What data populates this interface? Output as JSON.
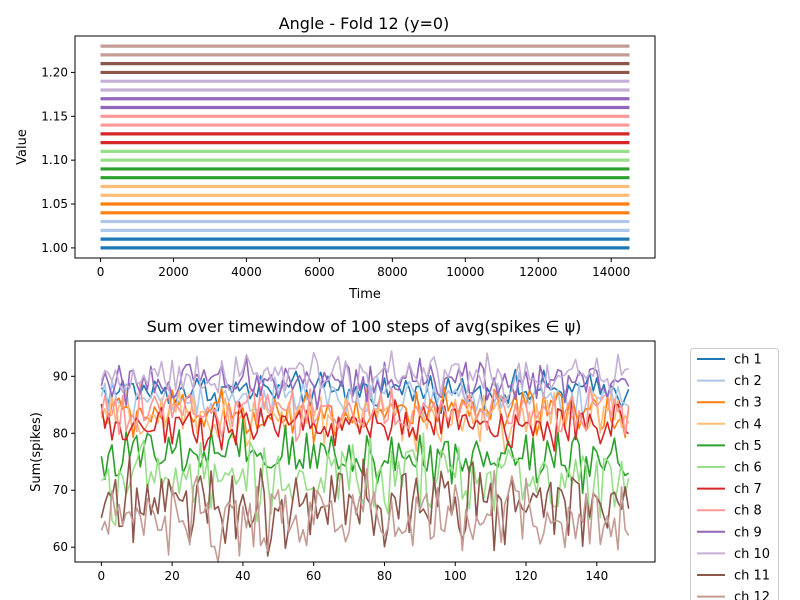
{
  "chart_data": [
    {
      "type": "line",
      "title": "Angle - Fold 12 (y=0)",
      "xlabel": "Time",
      "ylabel": "Value",
      "xlim": [
        -700,
        15200
      ],
      "ylim": [
        0.9885,
        1.2415
      ],
      "xticks": [
        0,
        2000,
        4000,
        6000,
        8000,
        10000,
        12000,
        14000
      ],
      "yticks": [
        1.0,
        1.05,
        1.1,
        1.15,
        1.2
      ],
      "ytick_labels": [
        "1.00",
        "1.05",
        "1.10",
        "1.15",
        "1.20"
      ],
      "x_range": [
        0,
        14500
      ],
      "grid": false,
      "series": [
        {
          "values": [
            1.0
          ],
          "color": "#1f77b4"
        },
        {
          "values": [
            1.01
          ],
          "color": "#1f77b4"
        },
        {
          "values": [
            1.02
          ],
          "color": "#aec7e8"
        },
        {
          "values": [
            1.03
          ],
          "color": "#aec7e8"
        },
        {
          "values": [
            1.04
          ],
          "color": "#ff7f0e"
        },
        {
          "values": [
            1.05
          ],
          "color": "#ff7f0e"
        },
        {
          "values": [
            1.06
          ],
          "color": "#ffbb78"
        },
        {
          "values": [
            1.07
          ],
          "color": "#ffbb78"
        },
        {
          "values": [
            1.08
          ],
          "color": "#2ca02c"
        },
        {
          "values": [
            1.09
          ],
          "color": "#2ca02c"
        },
        {
          "values": [
            1.1
          ],
          "color": "#98df8a"
        },
        {
          "values": [
            1.11
          ],
          "color": "#98df8a"
        },
        {
          "values": [
            1.12
          ],
          "color": "#d62728"
        },
        {
          "values": [
            1.13
          ],
          "color": "#d62728"
        },
        {
          "values": [
            1.14
          ],
          "color": "#ff9896"
        },
        {
          "values": [
            1.15
          ],
          "color": "#ff9896"
        },
        {
          "values": [
            1.16
          ],
          "color": "#9467bd"
        },
        {
          "values": [
            1.17
          ],
          "color": "#9467bd"
        },
        {
          "values": [
            1.18
          ],
          "color": "#c5b0d5"
        },
        {
          "values": [
            1.19
          ],
          "color": "#c5b0d5"
        },
        {
          "values": [
            1.2
          ],
          "color": "#8c564b"
        },
        {
          "values": [
            1.21
          ],
          "color": "#8c564b"
        },
        {
          "values": [
            1.22
          ],
          "color": "#c49c94"
        },
        {
          "values": [
            1.23
          ],
          "color": "#c49c94"
        }
      ]
    },
    {
      "type": "line",
      "title": "Sum over timewindow of 100 steps of avg(spikes ∈ ψ)",
      "xlabel": "",
      "ylabel": "Sum(spikes)",
      "xlim": [
        -7.45,
        156.45
      ],
      "ylim": [
        57.4,
        96.2
      ],
      "xticks": [
        0,
        20,
        40,
        60,
        80,
        100,
        120,
        140
      ],
      "yticks": [
        60,
        70,
        80,
        90
      ],
      "x_range": [
        0,
        149
      ],
      "grid": false,
      "legend_position": "outside-right",
      "series": [
        {
          "name": "ch 1",
          "color": "#1f77b4",
          "mean": 87.5,
          "amplitude": 1.5
        },
        {
          "name": "ch 2",
          "color": "#aec7e8",
          "mean": 86.0,
          "amplitude": 1.8
        },
        {
          "name": "ch 3",
          "color": "#ff7f0e",
          "mean": 83.5,
          "amplitude": 2.0
        },
        {
          "name": "ch 4",
          "color": "#ffbb78",
          "mean": 82.5,
          "amplitude": 2.3
        },
        {
          "name": "ch 5",
          "color": "#2ca02c",
          "mean": 76.0,
          "amplitude": 2.6
        },
        {
          "name": "ch 6",
          "color": "#98df8a",
          "mean": 72.0,
          "amplitude": 3.2
        },
        {
          "name": "ch 7",
          "color": "#d62728",
          "mean": 81.5,
          "amplitude": 2.0
        },
        {
          "name": "ch 8",
          "color": "#ff9896",
          "mean": 84.0,
          "amplitude": 2.0
        },
        {
          "name": "ch 9",
          "color": "#9467bd",
          "mean": 89.0,
          "amplitude": 1.8
        },
        {
          "name": "ch 10",
          "color": "#c5b0d5",
          "mean": 90.0,
          "amplitude": 1.8
        },
        {
          "name": "ch 11",
          "color": "#8c564b",
          "mean": 67.0,
          "amplitude": 3.5
        },
        {
          "name": "ch 12",
          "color": "#c49c94",
          "mean": 65.0,
          "amplitude": 3.3
        }
      ]
    }
  ]
}
